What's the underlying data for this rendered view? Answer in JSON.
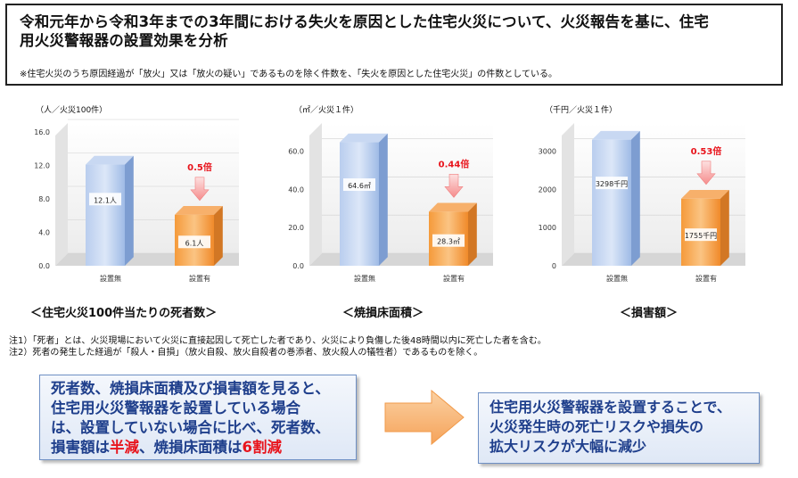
{
  "header": {
    "title_line1": "令和元年から令和3年までの3年間における失火を原因とした住宅火災について、火災報告を基に、住宅",
    "title_line2": "用火災警報器の設置効果を分析",
    "note": "※住宅火災のうち原因経過が「放火」又は「放火の疑い」であるものを除く件数を、「失火を原因とした住宅火災」の件数としている。"
  },
  "chart_data": [
    {
      "type": "bar",
      "unit": "（人／火災100件）",
      "categories": [
        "設置無",
        "設置有"
      ],
      "values": [
        12.1,
        6.1
      ],
      "value_labels": [
        "12.1人",
        "6.1人"
      ],
      "ratio_label": "0.5倍",
      "yticks": [
        "16.0",
        "12.0",
        "8.0",
        "4.0",
        "0.0"
      ],
      "ylim": [
        0,
        16
      ],
      "caption": "＜住宅火災100件当たりの死者数＞"
    },
    {
      "type": "bar",
      "unit": "（㎡／火災１件）",
      "categories": [
        "設置無",
        "設置有"
      ],
      "values": [
        64.6,
        28.3
      ],
      "value_labels": [
        "64.6㎡",
        "28.3㎡"
      ],
      "ratio_label": "0.44倍",
      "yticks": [
        "60.0",
        "40.0",
        "20.0",
        "0.0"
      ],
      "ylim": [
        0,
        70
      ],
      "caption": "＜焼損床面積＞"
    },
    {
      "type": "bar",
      "unit": "（千円／火災１件）",
      "categories": [
        "設置無",
        "設置有"
      ],
      "values": [
        3298,
        1755
      ],
      "value_labels": [
        "3298千円",
        "1755千円"
      ],
      "ratio_label": "0.53倍",
      "yticks": [
        "3000",
        "2000",
        "1000",
        "0"
      ],
      "ylim": [
        0,
        3500
      ],
      "caption": "＜損害額＞"
    }
  ],
  "notes": {
    "line1": "注1）「死者」とは、火災現場において火災に直接起因して死亡した者であり、火災により負傷した後48時間以内に死亡した者を含む。",
    "line2": "注2）死者の発生した経過が「殺人・自損」（放火自殺、放火自殺者の巻添者、放火殺人の犠牲者）であるものを除く。"
  },
  "summary_left": {
    "line1": "死者数、焼損床面積及び損害額を見ると、",
    "line2": "住宅用火災警報器を設置している場合",
    "line3": "は、設置していない場合に比べ、死者数、",
    "line4_a": "損害額は",
    "line4_b": "半減",
    "line4_c": "、焼損床面積は",
    "line4_d": "6割減"
  },
  "summary_right": {
    "line1": "住宅用火災警報器を設置することで、",
    "line2": "火災発生時の死亡リスクや損失の",
    "line3": "拡大リスクが大幅に減少"
  },
  "colors": {
    "blue_bar": "#8fb0e0",
    "orange_bar": "#f39a3c",
    "ratio_red": "#e8141c",
    "summary_text": "#1f3f8c"
  }
}
